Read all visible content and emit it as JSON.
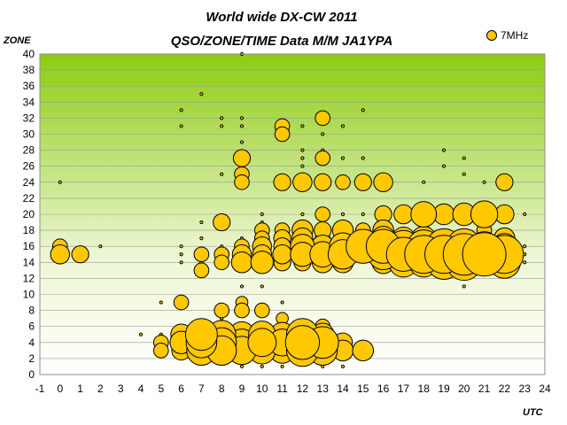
{
  "chart_data": {
    "type": "scatter",
    "title": "World wide DX-CW 2011",
    "subtitle": "QSO/ZONE/TIME Data M/M JA1YPA",
    "xlabel": "UTC",
    "ylabel": "ZONE",
    "xlim": [
      -1,
      24
    ],
    "ylim": [
      0,
      40
    ],
    "xticks": [
      "-1",
      "0",
      "1",
      "2",
      "3",
      "4",
      "5",
      "6",
      "7",
      "8",
      "9",
      "10",
      "11",
      "12",
      "13",
      "14",
      "15",
      "16",
      "17",
      "18",
      "19",
      "20",
      "21",
      "22",
      "23",
      "24"
    ],
    "yticks": [
      "0",
      "2",
      "4",
      "6",
      "8",
      "10",
      "12",
      "14",
      "16",
      "18",
      "20",
      "22",
      "24",
      "26",
      "28",
      "30",
      "32",
      "34",
      "36",
      "38",
      "40"
    ],
    "grid": true,
    "legend_position": "top-right",
    "colors": {
      "marker_fill": "#ffc800",
      "marker_stroke": "#000000",
      "plot_top": "#8ccc10",
      "plot_bottom": "#ffffff"
    },
    "series": [
      {
        "name": "7MHz",
        "points": [
          [
            0,
            24,
            1
          ],
          [
            0,
            16,
            3
          ],
          [
            0,
            15,
            5
          ],
          [
            0,
            14,
            1
          ],
          [
            1,
            15,
            4
          ],
          [
            2,
            16,
            1
          ],
          [
            4,
            5,
            1
          ],
          [
            5,
            9,
            1
          ],
          [
            5,
            5,
            1
          ],
          [
            5,
            4,
            3
          ],
          [
            5,
            3,
            3
          ],
          [
            6,
            33,
            1
          ],
          [
            6,
            31,
            1
          ],
          [
            6,
            16,
            1
          ],
          [
            6,
            15,
            1
          ],
          [
            6,
            14,
            1
          ],
          [
            6,
            9,
            3
          ],
          [
            6,
            5,
            6
          ],
          [
            6,
            4,
            7
          ],
          [
            6,
            3,
            5
          ],
          [
            7,
            35,
            1
          ],
          [
            7,
            19,
            1
          ],
          [
            7,
            17,
            1
          ],
          [
            7,
            15,
            3
          ],
          [
            7,
            14,
            1
          ],
          [
            7,
            13,
            3
          ],
          [
            7,
            5,
            14
          ],
          [
            7,
            4,
            13
          ],
          [
            7,
            3,
            12
          ],
          [
            8,
            32,
            1
          ],
          [
            8,
            31,
            1
          ],
          [
            8,
            25,
            1
          ],
          [
            8,
            19,
            4
          ],
          [
            8,
            16,
            1
          ],
          [
            8,
            15,
            3
          ],
          [
            8,
            14,
            3
          ],
          [
            8,
            8,
            3
          ],
          [
            8,
            7,
            1
          ],
          [
            8,
            5,
            11
          ],
          [
            8,
            4,
            12
          ],
          [
            8,
            3,
            12
          ],
          [
            9,
            40,
            1
          ],
          [
            9,
            32,
            1
          ],
          [
            9,
            31,
            1
          ],
          [
            9,
            29,
            1
          ],
          [
            9,
            27,
            4
          ],
          [
            9,
            25,
            3
          ],
          [
            9,
            24,
            3
          ],
          [
            9,
            17,
            1
          ],
          [
            9,
            16,
            3
          ],
          [
            9,
            15,
            5
          ],
          [
            9,
            14,
            6
          ],
          [
            9,
            11,
            1
          ],
          [
            9,
            9,
            2
          ],
          [
            9,
            8,
            3
          ],
          [
            9,
            5,
            9
          ],
          [
            9,
            4,
            10
          ],
          [
            9,
            3,
            11
          ],
          [
            9,
            2,
            1
          ],
          [
            9,
            1,
            1
          ],
          [
            10,
            20,
            1
          ],
          [
            10,
            19,
            1
          ],
          [
            10,
            18,
            3
          ],
          [
            10,
            17,
            3
          ],
          [
            10,
            16,
            5
          ],
          [
            10,
            15,
            5
          ],
          [
            10,
            14,
            7
          ],
          [
            10,
            11,
            1
          ],
          [
            10,
            8,
            3
          ],
          [
            10,
            5,
            10
          ],
          [
            10,
            4,
            11
          ],
          [
            10,
            3,
            10
          ],
          [
            10,
            1,
            1
          ],
          [
            11,
            31,
            3
          ],
          [
            11,
            30,
            3
          ],
          [
            11,
            24,
            4
          ],
          [
            11,
            18,
            3
          ],
          [
            11,
            17,
            4
          ],
          [
            11,
            16,
            4
          ],
          [
            11,
            15,
            5
          ],
          [
            11,
            14,
            4
          ],
          [
            11,
            9,
            1
          ],
          [
            11,
            7,
            2
          ],
          [
            11,
            5,
            8
          ],
          [
            11,
            4,
            10
          ],
          [
            11,
            3,
            9
          ],
          [
            11,
            1,
            1
          ],
          [
            12,
            31,
            1
          ],
          [
            12,
            28,
            1
          ],
          [
            12,
            27,
            1
          ],
          [
            12,
            26,
            1
          ],
          [
            12,
            25,
            1
          ],
          [
            12,
            24,
            5
          ],
          [
            12,
            20,
            1
          ],
          [
            12,
            18,
            6
          ],
          [
            12,
            17,
            6
          ],
          [
            12,
            16,
            8
          ],
          [
            12,
            15,
            8
          ],
          [
            12,
            14,
            4
          ],
          [
            12,
            6,
            1
          ],
          [
            12,
            5,
            14
          ],
          [
            12,
            4,
            16
          ],
          [
            12,
            3,
            14
          ],
          [
            13,
            32,
            3
          ],
          [
            13,
            30,
            1
          ],
          [
            13,
            28,
            1
          ],
          [
            13,
            27,
            3
          ],
          [
            13,
            24,
            4
          ],
          [
            13,
            20,
            3
          ],
          [
            13,
            18,
            4
          ],
          [
            13,
            17,
            3
          ],
          [
            13,
            16,
            7
          ],
          [
            13,
            15,
            9
          ],
          [
            13,
            14,
            6
          ],
          [
            13,
            6,
            3
          ],
          [
            13,
            5,
            7
          ],
          [
            13,
            4,
            14
          ],
          [
            13,
            3,
            12
          ],
          [
            13,
            2,
            1
          ],
          [
            13,
            1,
            1
          ],
          [
            14,
            31,
            1
          ],
          [
            14,
            27,
            1
          ],
          [
            14,
            24,
            3
          ],
          [
            14,
            20,
            1
          ],
          [
            14,
            18,
            6
          ],
          [
            14,
            17,
            3
          ],
          [
            14,
            16,
            10
          ],
          [
            14,
            15,
            12
          ],
          [
            14,
            14,
            6
          ],
          [
            14,
            4,
            5
          ],
          [
            14,
            3,
            6
          ],
          [
            14,
            1,
            1
          ],
          [
            15,
            33,
            1
          ],
          [
            15,
            27,
            1
          ],
          [
            15,
            24,
            4
          ],
          [
            15,
            20,
            1
          ],
          [
            15,
            18,
            3
          ],
          [
            15,
            17,
            4
          ],
          [
            15,
            16,
            16
          ],
          [
            15,
            15,
            4
          ],
          [
            15,
            3,
            6
          ],
          [
            16,
            24,
            5
          ],
          [
            16,
            20,
            4
          ],
          [
            16,
            18,
            6
          ],
          [
            16,
            17,
            8
          ],
          [
            16,
            16,
            16
          ],
          [
            16,
            15,
            13
          ],
          [
            16,
            14,
            7
          ],
          [
            17,
            20,
            5
          ],
          [
            17,
            17,
            7
          ],
          [
            17,
            16,
            14
          ],
          [
            17,
            15,
            16
          ],
          [
            17,
            14,
            12
          ],
          [
            18,
            24,
            1
          ],
          [
            18,
            20,
            9
          ],
          [
            18,
            17,
            8
          ],
          [
            18,
            16,
            15
          ],
          [
            18,
            15,
            20
          ],
          [
            18,
            14,
            12
          ],
          [
            19,
            28,
            1
          ],
          [
            19,
            26,
            1
          ],
          [
            19,
            20,
            6
          ],
          [
            19,
            17,
            3
          ],
          [
            19,
            16,
            17
          ],
          [
            19,
            15,
            20
          ],
          [
            19,
            14,
            16
          ],
          [
            20,
            27,
            1
          ],
          [
            20,
            25,
            1
          ],
          [
            20,
            20,
            7
          ],
          [
            20,
            17,
            4
          ],
          [
            20,
            16,
            17
          ],
          [
            20,
            15,
            24
          ],
          [
            20,
            14,
            18
          ],
          [
            20,
            11,
            1
          ],
          [
            21,
            24,
            1
          ],
          [
            21,
            20,
            10
          ],
          [
            21,
            18,
            3
          ],
          [
            21,
            16,
            12
          ],
          [
            21,
            15,
            26
          ],
          [
            22,
            24,
            4
          ],
          [
            22,
            21,
            1
          ],
          [
            22,
            20,
            5
          ],
          [
            22,
            17,
            6
          ],
          [
            22,
            16,
            9
          ],
          [
            22,
            15,
            20
          ],
          [
            22,
            14,
            14
          ],
          [
            23,
            20,
            1
          ],
          [
            23,
            16,
            1
          ],
          [
            23,
            15,
            1
          ],
          [
            23,
            14,
            1
          ]
        ]
      }
    ]
  }
}
